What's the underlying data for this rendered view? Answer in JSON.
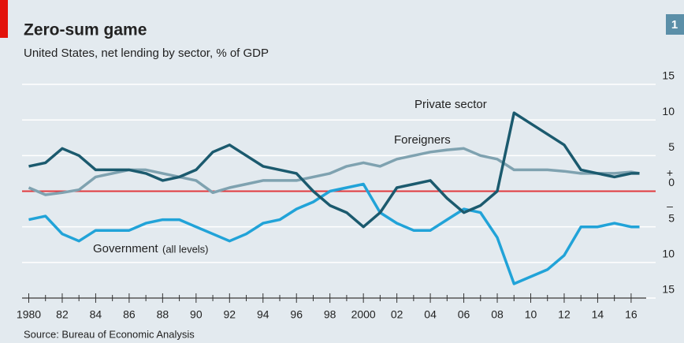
{
  "chart_data": {
    "type": "line",
    "title": "Zero-sum game",
    "subtitle": "United States, net lending by sector, % of GDP",
    "badge": "1",
    "source": "Source: Bureau of Economic Analysis",
    "y_sign_labels": [
      "+",
      "–"
    ],
    "zero_line_color": "#e0393e",
    "grid": true,
    "x": [
      1980,
      1981,
      1982,
      1983,
      1984,
      1985,
      1986,
      1987,
      1988,
      1989,
      1990,
      1991,
      1992,
      1993,
      1994,
      1995,
      1996,
      1997,
      1998,
      1999,
      2000,
      2001,
      2002,
      2003,
      2004,
      2005,
      2006,
      2007,
      2008,
      2009,
      2010,
      2011,
      2012,
      2013,
      2014,
      2015,
      2016,
      2016.5
    ],
    "xlim": [
      1979.6,
      2016.9
    ],
    "xticks": [
      1980,
      {
        "value": 1982,
        "label": "82"
      },
      {
        "value": 1984,
        "label": "84"
      },
      {
        "value": 1986,
        "label": "86"
      },
      {
        "value": 1988,
        "label": "88"
      },
      {
        "value": 1990,
        "label": "90"
      },
      {
        "value": 1992,
        "label": "92"
      },
      {
        "value": 1994,
        "label": "94"
      },
      {
        "value": 1996,
        "label": "96"
      },
      {
        "value": 1998,
        "label": "98"
      },
      2000,
      {
        "value": 2002,
        "label": "02"
      },
      {
        "value": 2004,
        "label": "04"
      },
      {
        "value": 2006,
        "label": "06"
      },
      {
        "value": 2008,
        "label": "08"
      },
      {
        "value": 2010,
        "label": "10"
      },
      {
        "value": 2012,
        "label": "12"
      },
      {
        "value": 2014,
        "label": "14"
      },
      {
        "value": 2016,
        "label": "16"
      }
    ],
    "ylim": [
      -15,
      15
    ],
    "yticks": [
      15,
      10,
      5,
      0,
      {
        "value": -5,
        "label": "5"
      },
      {
        "value": -10,
        "label": "10"
      },
      {
        "value": -15,
        "label": "15"
      }
    ],
    "annotations": [
      "Private sector",
      "Foreigners",
      "Government",
      "(all levels)"
    ],
    "series": [
      {
        "name": "Private sector",
        "color": "#1b5a6e",
        "values": [
          3.5,
          4,
          6,
          5,
          3,
          3,
          3,
          2.5,
          1.5,
          2,
          3,
          5.5,
          6.5,
          5,
          3.5,
          3,
          2.5,
          0,
          -2,
          -3,
          -5,
          -3,
          0.5,
          1,
          1.5,
          -1,
          -3,
          -2,
          0,
          11,
          9.5,
          8,
          6.5,
          3,
          2.5,
          2,
          2.5,
          2.5
        ]
      },
      {
        "name": "Foreigners",
        "color": "#7fa2b0",
        "values": [
          0.5,
          -0.5,
          -0.2,
          0.2,
          2,
          2.5,
          3,
          3,
          2.5,
          2,
          1.5,
          -0.2,
          0.5,
          1,
          1.5,
          1.5,
          1.5,
          2,
          2.5,
          3.5,
          4,
          3.5,
          4.5,
          5,
          5.5,
          5.8,
          6,
          5,
          4.5,
          3,
          3,
          3,
          2.8,
          2.5,
          2.5,
          2.5,
          2.7,
          2.5
        ]
      },
      {
        "name": "Government",
        "color": "#21a3d8",
        "values": [
          -4,
          -3.5,
          -6,
          -7,
          -5.5,
          -5.5,
          -5.5,
          -4.5,
          -4,
          -4,
          -5,
          -6,
          -7,
          -6,
          -4.5,
          -4,
          -2.5,
          -1.5,
          0,
          0.5,
          1,
          -3,
          -4.5,
          -5.5,
          -5.5,
          -4,
          -2.5,
          -3,
          -6.5,
          -13,
          -12,
          -11,
          -9,
          -5,
          -5,
          -4.5,
          -5,
          -5
        ]
      }
    ]
  }
}
